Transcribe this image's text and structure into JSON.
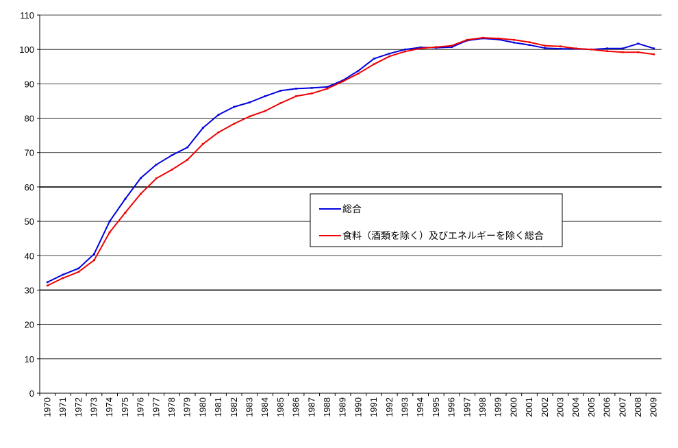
{
  "chart_data": {
    "type": "line",
    "title": "",
    "xlabel": "",
    "ylabel": "",
    "ylim": [
      0,
      110
    ],
    "yticks": [
      0,
      10,
      20,
      30,
      40,
      50,
      60,
      70,
      80,
      90,
      100,
      110
    ],
    "x": [
      1970,
      1971,
      1972,
      1973,
      1974,
      1975,
      1976,
      1977,
      1978,
      1979,
      1980,
      1981,
      1982,
      1983,
      1984,
      1985,
      1986,
      1987,
      1988,
      1989,
      1990,
      1991,
      1992,
      1993,
      1994,
      1995,
      1996,
      1997,
      1998,
      1999,
      2000,
      2001,
      2002,
      2003,
      2004,
      2005,
      2006,
      2007,
      2008,
      2009
    ],
    "x_tick_labels": [
      "1970",
      "1971",
      "1972",
      "1973",
      "1974",
      "1975",
      "1976",
      "1977",
      "1978",
      "1979",
      "1980",
      "1981",
      "1982",
      "1983",
      "1984",
      "1985",
      "1986",
      "1987",
      "1988",
      "1989",
      "1990",
      "1991",
      "1992",
      "1993",
      "1994",
      "1995",
      "1996",
      "1997",
      "1998",
      "1999",
      "2000",
      "2001",
      "2002",
      "2003",
      "2004",
      "2005",
      "2006",
      "2007",
      "2008",
      "2009"
    ],
    "grid": "horizontal",
    "legend_position": "center-right",
    "series": [
      {
        "name": "総合",
        "color": "#0000dd",
        "values": [
          32.3,
          34.5,
          36.3,
          40.5,
          50.0,
          56.5,
          62.6,
          66.5,
          69.2,
          71.5,
          77.2,
          81.0,
          83.3,
          84.6,
          86.4,
          88.0,
          88.6,
          88.8,
          89.1,
          91.0,
          93.8,
          97.3,
          98.8,
          100.0,
          100.6,
          100.5,
          100.7,
          102.6,
          103.2,
          102.9,
          102.0,
          101.3,
          100.4,
          100.2,
          100.2,
          100.0,
          100.3,
          100.3,
          101.7,
          100.3
        ]
      },
      {
        "name": "食料（酒類を除く）及びエネルギーを除く総合",
        "color": "#ee0000",
        "values": [
          31.3,
          33.5,
          35.3,
          38.7,
          46.8,
          52.5,
          58.0,
          62.5,
          65.0,
          67.9,
          72.5,
          75.9,
          78.4,
          80.5,
          82.1,
          84.4,
          86.4,
          87.2,
          88.6,
          90.7,
          93.0,
          95.7,
          98.0,
          99.4,
          100.3,
          100.7,
          101.1,
          102.8,
          103.4,
          103.2,
          102.8,
          102.1,
          101.1,
          100.9,
          100.3,
          100.0,
          99.5,
          99.2,
          99.2,
          98.6
        ]
      }
    ]
  }
}
